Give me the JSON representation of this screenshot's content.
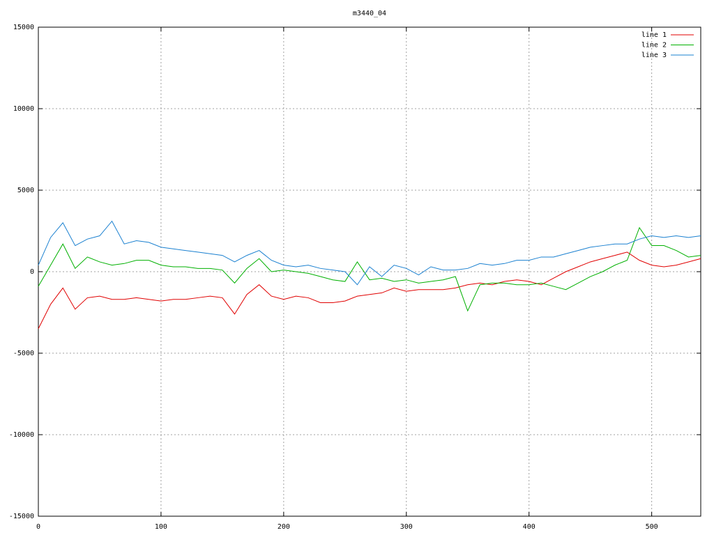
{
  "chart_data": {
    "type": "line",
    "title": "m3440_04",
    "x": [
      0,
      10,
      20,
      30,
      40,
      50,
      60,
      70,
      80,
      90,
      100,
      110,
      120,
      130,
      140,
      150,
      160,
      170,
      180,
      190,
      200,
      210,
      220,
      230,
      240,
      250,
      260,
      270,
      280,
      290,
      300,
      310,
      320,
      330,
      340,
      350,
      360,
      370,
      380,
      390,
      400,
      410,
      420,
      430,
      440,
      450,
      460,
      470,
      480,
      490,
      500,
      510,
      520,
      530,
      540
    ],
    "series": [
      {
        "name": "line 1",
        "color": "#e00000",
        "values": [
          -3500,
          -2000,
          -1000,
          -2300,
          -1600,
          -1500,
          -1700,
          -1700,
          -1600,
          -1700,
          -1800,
          -1700,
          -1700,
          -1600,
          -1500,
          -1600,
          -2600,
          -1400,
          -800,
          -1500,
          -1700,
          -1500,
          -1600,
          -1900,
          -1900,
          -1800,
          -1500,
          -1400,
          -1300,
          -1000,
          -1200,
          -1100,
          -1100,
          -1100,
          -1000,
          -800,
          -700,
          -800,
          -600,
          -500,
          -600,
          -800,
          -400,
          0,
          300,
          600,
          800,
          1000,
          1200,
          700,
          400,
          300,
          400,
          600,
          800
        ]
      },
      {
        "name": "line 2",
        "color": "#00b000",
        "values": [
          -900,
          400,
          1700,
          200,
          900,
          600,
          400,
          500,
          700,
          700,
          400,
          300,
          300,
          200,
          200,
          100,
          -700,
          200,
          800,
          0,
          100,
          0,
          -100,
          -300,
          -500,
          -600,
          600,
          -500,
          -400,
          -600,
          -500,
          -700,
          -600,
          -500,
          -300,
          -2400,
          -800,
          -700,
          -700,
          -800,
          -800,
          -700,
          -900,
          -1100,
          -700,
          -300,
          0,
          400,
          700,
          2700,
          1600,
          1600,
          1300,
          900,
          1000
        ]
      },
      {
        "name": "line 3",
        "color": "#1a80d0",
        "values": [
          400,
          2100,
          3000,
          1600,
          2000,
          2200,
          3100,
          1700,
          1900,
          1800,
          1500,
          1400,
          1300,
          1200,
          1100,
          1000,
          600,
          1000,
          1300,
          700,
          400,
          300,
          400,
          200,
          100,
          0,
          -800,
          300,
          -300,
          400,
          200,
          -200,
          300,
          100,
          100,
          200,
          500,
          400,
          500,
          700,
          700,
          900,
          900,
          1100,
          1300,
          1500,
          1600,
          1700,
          1700,
          2000,
          2200,
          2100,
          2200,
          2100,
          2200
        ]
      }
    ],
    "xlim": [
      0,
      540
    ],
    "xticks": [
      0,
      100,
      200,
      300,
      400,
      500
    ],
    "ylim": [
      -15000,
      15000
    ],
    "yticks": [
      -15000,
      -10000,
      -5000,
      0,
      5000,
      10000,
      15000
    ],
    "grid": true,
    "legend": "top-right"
  }
}
